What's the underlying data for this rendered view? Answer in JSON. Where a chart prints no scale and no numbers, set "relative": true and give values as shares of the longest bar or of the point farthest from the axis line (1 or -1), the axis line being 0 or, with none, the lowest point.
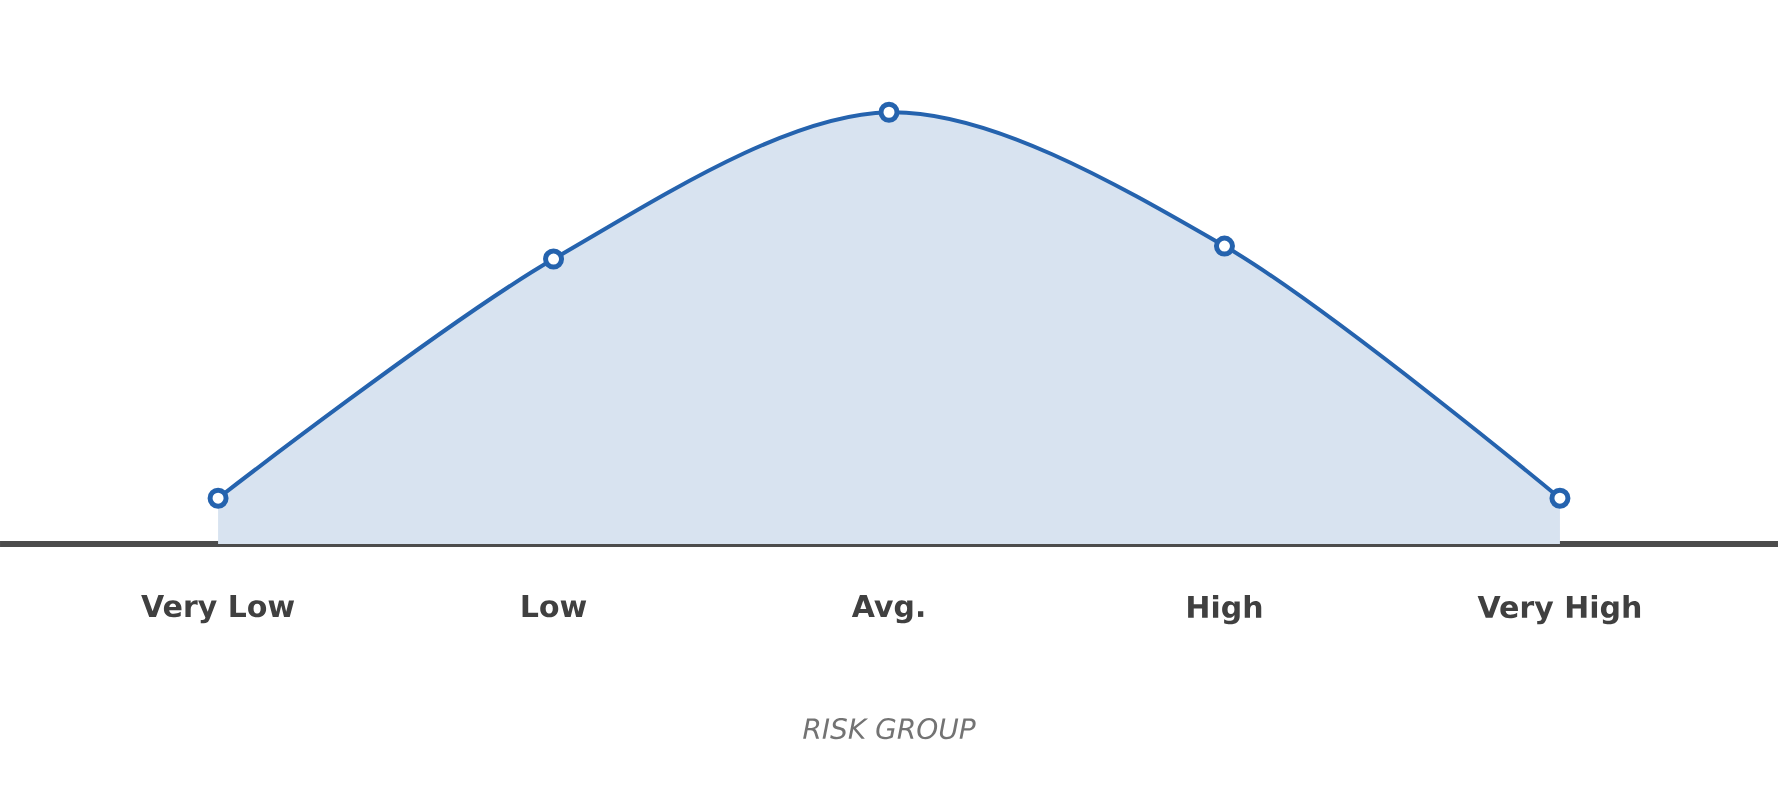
{
  "chart_data": {
    "type": "area",
    "relative": true,
    "xlabel": "RISK GROUP",
    "categories": [
      "Very Low",
      "Low",
      "Avg.",
      "High",
      "Very High"
    ],
    "values": [
      0.106,
      0.66,
      1,
      0.69,
      0.106
    ],
    "color": "#2563ae",
    "marker": "circle"
  }
}
